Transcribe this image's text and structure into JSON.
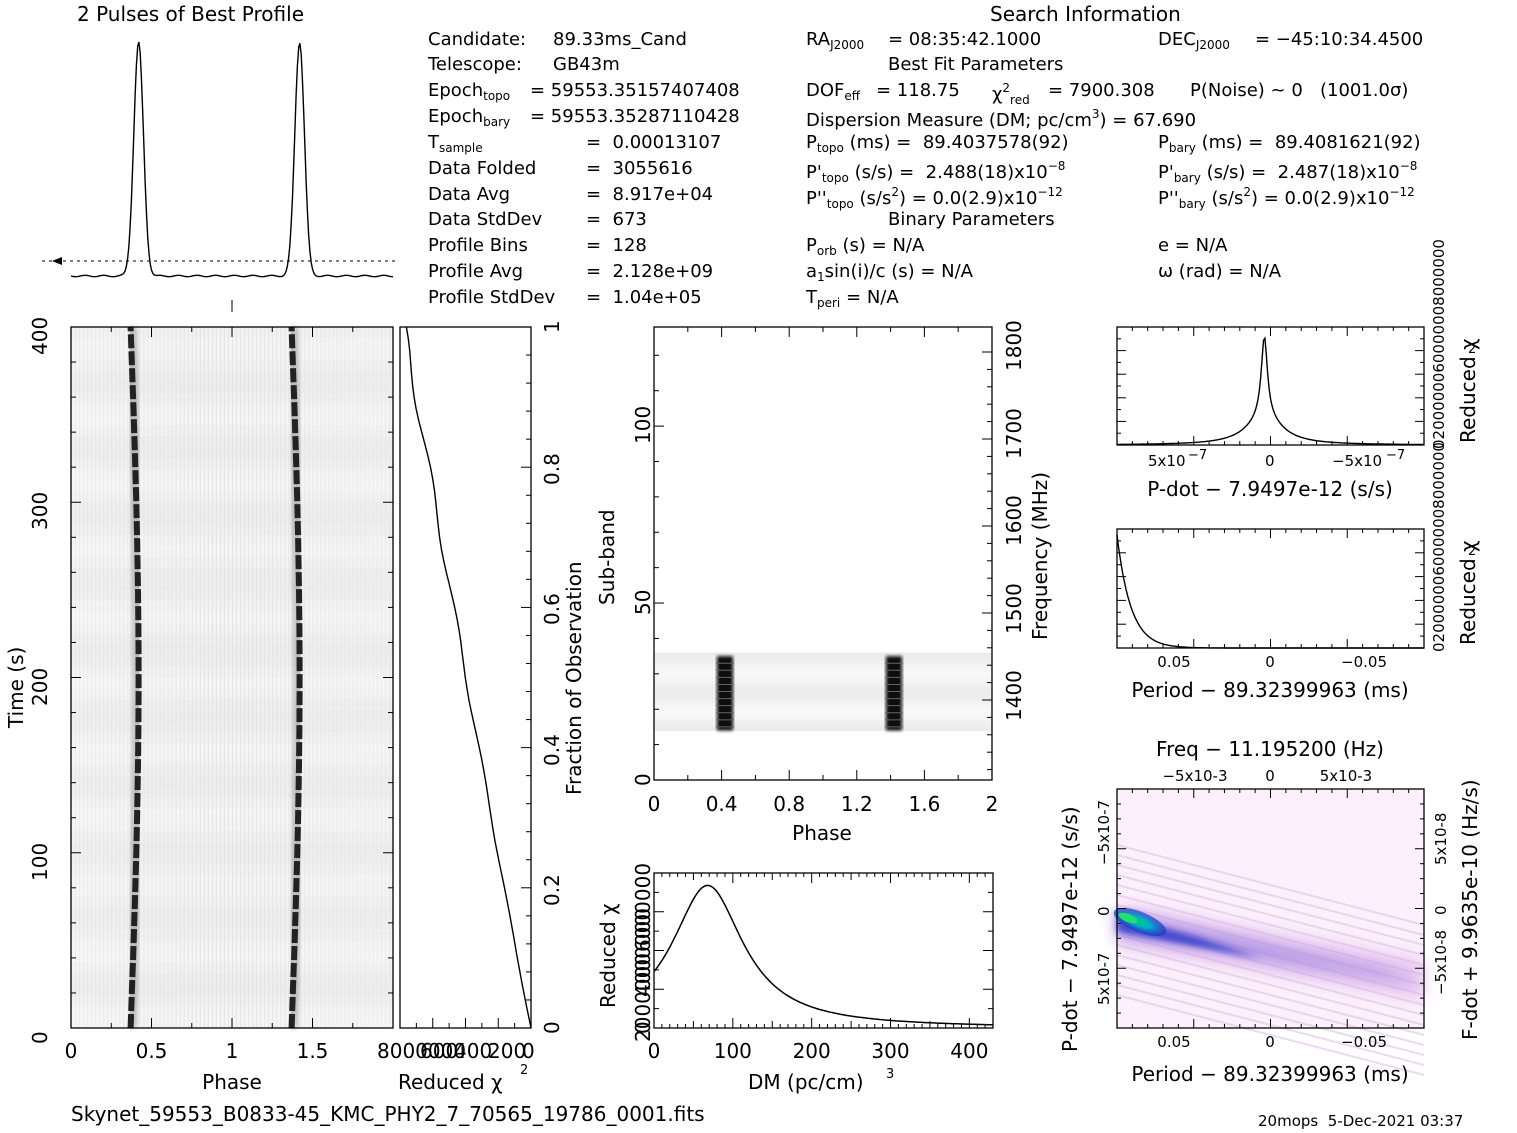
{
  "chart_data": [
    {
      "id": "best_profile",
      "type": "line",
      "title": "2 Pulses of Best Profile",
      "x_range": [
        0,
        2
      ],
      "pulse_phases": [
        0.42,
        1.42
      ],
      "baseline_marker": "dashed",
      "description_values": {
        "profile_bins": 128
      }
    },
    {
      "id": "time_phase",
      "type": "heatmap",
      "xlabel": "Phase",
      "ylabel": "Time (s)",
      "xlim": [
        0,
        2
      ],
      "ylim": [
        0,
        400
      ],
      "xticks": [
        "0",
        "0.5",
        "1",
        "1.5"
      ],
      "yticks": [
        "0",
        "100",
        "200",
        "300",
        "400"
      ],
      "track_phases": [
        {
          "time": 0,
          "phase": 0.37
        },
        {
          "time": 100,
          "phase": 0.39
        },
        {
          "time": 200,
          "phase": 0.42
        },
        {
          "time": 300,
          "phase": 0.42
        },
        {
          "time": 400,
          "phase": 0.37
        }
      ]
    },
    {
      "id": "reduced_chi2_time",
      "type": "line",
      "xlabel": "Reduced χ2",
      "ylabel_right": "Fraction of Observation",
      "xlim_label": "8000000",
      "xtick_labels": [
        "600",
        "400",
        "200",
        "0"
      ],
      "yticks_right": [
        "0",
        "0.2",
        "0.4",
        "0.6",
        "0.8",
        "1"
      ],
      "points": [
        {
          "frac": 0,
          "chi2": 0
        },
        {
          "frac": 0.1,
          "chi2": 0.1
        },
        {
          "frac": 0.25,
          "chi2": 0.25
        },
        {
          "frac": 0.45,
          "chi2": 0.42
        },
        {
          "frac": 0.65,
          "chi2": 0.6
        },
        {
          "frac": 0.85,
          "chi2": 0.8
        },
        {
          "frac": 0.95,
          "chi2": 0.93
        },
        {
          "frac": 1,
          "chi2": 1
        }
      ]
    },
    {
      "id": "subband_phase",
      "type": "heatmap",
      "xlabel": "Phase",
      "ylabel": "Sub-band",
      "ylabel_right": "Frequency (MHz)",
      "xlim": [
        0,
        2
      ],
      "ylim": [
        0,
        128
      ],
      "xticks": [
        "0",
        "0.4",
        "0.8",
        "1.2",
        "1.6",
        "2"
      ],
      "yticks": [
        "0",
        "50",
        "100"
      ],
      "yticks_right": [
        "1400",
        "1500",
        "1600",
        "1700",
        "1800"
      ],
      "signal_subbands": [
        14,
        35
      ],
      "pulse_phases": [
        0.42,
        1.42
      ]
    },
    {
      "id": "dm_curve",
      "type": "line",
      "xlabel": "DM (pc/cm3)",
      "ylabel": "Reduced χ2",
      "xlim": [
        0,
        430
      ],
      "xticks": [
        "0",
        "100",
        "200",
        "300",
        "400"
      ],
      "ytick_labels": [
        "2000000",
        "4000000",
        "6000000"
      ],
      "x": [
        0,
        20,
        40,
        60,
        68,
        80,
        100,
        140,
        200,
        300,
        400,
        430
      ],
      "y": [
        0.42,
        0.6,
        0.82,
        0.97,
        1.0,
        0.95,
        0.72,
        0.42,
        0.22,
        0.08,
        0.02,
        0.01
      ]
    },
    {
      "id": "pdot_curve",
      "type": "line",
      "xlabel": "P-dot − 7.9497e-12 (s/s)",
      "ylabel_right": "Reduced χ2",
      "xticks": [
        "5x10-7",
        "0",
        "-5x10-7"
      ],
      "ytick_labels": [
        "0",
        "2000000",
        "6000000",
        "8000000"
      ],
      "x": [
        1.0,
        0.8,
        0.6,
        0.4,
        0.2,
        0.1,
        0.05,
        0.02,
        0.0,
        -0.02,
        -0.05,
        -0.1,
        -0.2,
        -0.4,
        -0.6,
        -0.8,
        -1.0
      ],
      "y": [
        0.0,
        0.01,
        0.03,
        0.06,
        0.12,
        0.2,
        0.35,
        0.7,
        1.0,
        0.6,
        0.28,
        0.12,
        0.05,
        0.02,
        0.01,
        0.0,
        0.0
      ]
    },
    {
      "id": "period_curve",
      "type": "line",
      "xlabel": "Period − 89.32399963 (ms)",
      "ylabel_right": "Reduced χ2",
      "xticks": [
        "0.05",
        "0",
        "−0.05"
      ],
      "ytick_labels": [
        "0",
        "2000000",
        "6000000",
        "8000000"
      ],
      "x": [
        0.083,
        0.08,
        0.075,
        0.07,
        0.065,
        0.06,
        0.055,
        0.05,
        0.04,
        0.0,
        -0.05,
        -0.08
      ],
      "y": [
        0.95,
        0.7,
        0.42,
        0.22,
        0.1,
        0.04,
        0.015,
        0.005,
        0.0,
        0.0,
        0.0,
        0.0
      ]
    },
    {
      "id": "period_pdot_map",
      "type": "heatmap",
      "title": "Freq − 11.195200 (Hz)",
      "xlabel": "Period − 89.32399963 (ms)",
      "ylabel": "P-dot − 7.9497e-12 (s/s)",
      "ylabel_right": "F-dot + 9.9635e-10 (Hz/s)",
      "xticks_bottom": [
        "0.05",
        "0",
        "−0.05"
      ],
      "xticks_top": [
        "−5x10-3",
        "0",
        "5x10-3"
      ],
      "yticks_left": [
        "−5x10-7",
        "0",
        "5x10-7"
      ],
      "yticks_right": [
        "5x10-8",
        "0",
        "−5x10-8"
      ],
      "ridge": [
        {
          "period": 0.083,
          "pdot": 0.0
        },
        {
          "period": 0.05,
          "pdot": 0.2
        },
        {
          "period": 0.0,
          "pdot": 0.5
        },
        {
          "period": -0.083,
          "pdot": 0.8
        }
      ]
    }
  ],
  "header": {
    "profile_title": "2 Pulses of Best Profile",
    "search_title": "Search Information"
  },
  "info_left": [
    {
      "label": "Candidate:",
      "value": "89.33ms_Cand"
    },
    {
      "label": "Telescope:",
      "value": "GB43m"
    },
    {
      "label": "Epoch_topo",
      "value": "= 59553.35157407408"
    },
    {
      "label": "Epoch_bary",
      "value": "= 59553.35287110428"
    },
    {
      "label": "T_sample",
      "value": "=  0.00013107"
    },
    {
      "label": "Data Folded",
      "value": "=  3055616"
    },
    {
      "label": "Data Avg",
      "value": "=  8.917e+04"
    },
    {
      "label": "Data StdDev",
      "value": "=  673"
    },
    {
      "label": "Profile Bins",
      "value": "=  128"
    },
    {
      "label": "Profile Avg",
      "value": "=  2.128e+09"
    },
    {
      "label": "Profile StdDev",
      "value": "=  1.04e+05"
    }
  ],
  "info_mid": {
    "ra": "= 08:35:42.1000",
    "dec": "= −45:10:34.4500",
    "best_fit_title": "Best Fit Parameters",
    "dof": "= 118.75",
    "chi2red": "= 7900.308",
    "pnoise": "P(Noise) ~ 0   (1001.0σ)",
    "dm": "Dispersion Measure (DM; pc/cm",
    "dm_value": ") = 67.690",
    "ptopo": "(ms) =  89.4037578(92)",
    "pbary": "(ms) =  89.4081621(92)",
    "pdtopo": "(s/s) =  2.488(18)x10",
    "pdbary": "(s/s) =  2.487(18)x10",
    "pddtopo": "(s/s",
    "pddbary": "(s/s",
    "binary_title": "Binary Parameters",
    "porb": "(s) = N/A",
    "a1": "sin(i)/c (s) = N/A",
    "tperi": "= N/A",
    "e": "e = N/A",
    "omega": "ω (rad) = N/A"
  },
  "footer": {
    "filename": "Skynet_59553_B0833-45_KMC_PHY2_7_70565_19786_0001.fits",
    "stamp": "20mops  5-Dec-2021 03:37"
  }
}
